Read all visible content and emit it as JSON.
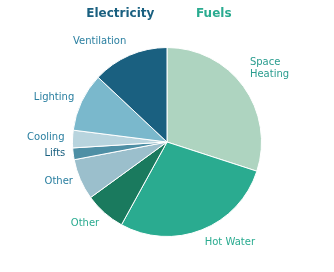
{
  "chart_data": {
    "type": "pie",
    "categories": [
      "Space\nHeating",
      "Hot Water",
      "Other",
      "Other",
      "Lifts",
      "Cooling",
      "Lighting",
      "Ventilation"
    ],
    "values": [
      30,
      28,
      7,
      7,
      2,
      3,
      10,
      13
    ],
    "colors": [
      "#aed4c0",
      "#2aab90",
      "#1a7a5e",
      "#9bbfcc",
      "#4e8fa5",
      "#b8d4de",
      "#7ab8cc",
      "#1a6080"
    ],
    "label_colors": [
      "#2a9d8f",
      "#2aab90",
      "#2aab90",
      "#2a7fa0",
      "#1a6080",
      "#2a7fa0",
      "#2a7fa0",
      "#2a7fa0"
    ],
    "annotations": [
      {
        "text": "Electricity",
        "color": "#1a6080"
      },
      {
        "text": "Fuels",
        "color": "#2aab90"
      }
    ]
  }
}
